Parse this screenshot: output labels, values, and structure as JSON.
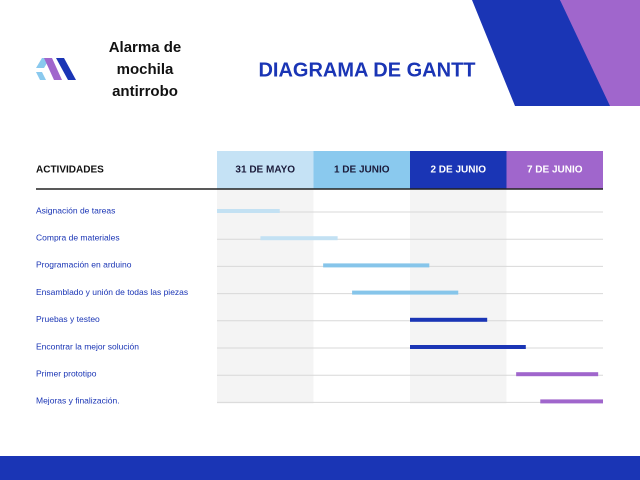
{
  "header": {
    "brand": "Alarma de mochila antirrobo"
  },
  "chart_data": {
    "type": "gantt",
    "title": "DIAGRAMA DE GANTT",
    "row_header": "ACTIVIDADES",
    "categories": [
      "31 DE MAYO",
      "1 DE JUNIO",
      "2 DE JUNIO",
      "7 DE JUNIO"
    ],
    "category_colors": [
      "#c5e2f5",
      "#8ac9ee",
      "#1a35b5",
      "#a066cc"
    ],
    "category_text_colors": [
      "#1b1b3a",
      "#1b1b3a",
      "#ffffff",
      "#ffffff"
    ],
    "xlim": [
      0,
      4
    ],
    "tasks": [
      {
        "name": "Asignación de tareas",
        "start": 0,
        "end": 0.65,
        "color": "#c3e1f3"
      },
      {
        "name": "Compra de materiales",
        "start": 0.45,
        "end": 1.25,
        "color": "#c3e1f3"
      },
      {
        "name": "Programación en arduino",
        "start": 1.1,
        "end": 2.2,
        "color": "#86c5ea"
      },
      {
        "name": "Ensamblado y unión de todas las piezas",
        "start": 1.4,
        "end": 2.5,
        "color": "#86c5ea"
      },
      {
        "name": "Pruebas y testeo",
        "start": 2.0,
        "end": 2.8,
        "color": "#1a35b5"
      },
      {
        "name": "Encontrar la mejor solución",
        "start": 2.0,
        "end": 3.2,
        "color": "#1a35b5"
      },
      {
        "name": "Primer prototipo",
        "start": 3.1,
        "end": 3.95,
        "color": "#a066cc"
      },
      {
        "name": "Mejoras y finalización.",
        "start": 3.35,
        "end": 4.0,
        "color": "#a066cc"
      }
    ]
  }
}
